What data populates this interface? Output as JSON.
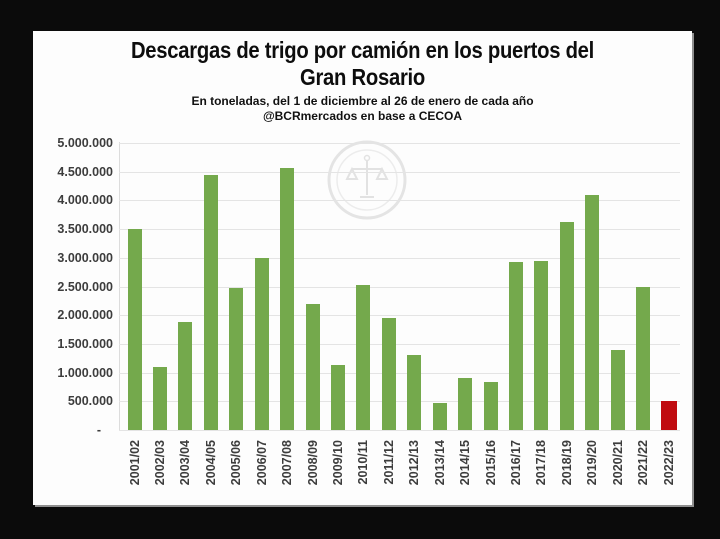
{
  "window": {
    "background": "#0b0b0b",
    "panel_background": "#fdfdfd"
  },
  "icons": {
    "watermark": "bcr-seal"
  },
  "chart_data": {
    "type": "bar",
    "title_lines": [
      "Descargas de trigo por camión en los puertos del",
      "Gran Rosario"
    ],
    "title": "Descargas de trigo por camión en los puertos del Gran Rosario",
    "subtitle": "En toneladas, del 1 de diciembre al 26 de enero de cada año",
    "source": "@BCRmercados en base a CECOA",
    "unit": "toneladas",
    "categories": [
      "2001/02",
      "2002/03",
      "2003/04",
      "2004/05",
      "2005/06",
      "2006/07",
      "2007/08",
      "2008/09",
      "2009/10",
      "2010/11",
      "2011/12",
      "2012/13",
      "2013/14",
      "2014/15",
      "2015/16",
      "2016/17",
      "2017/18",
      "2018/19",
      "2019/20",
      "2020/21",
      "2021/22",
      "2022/23"
    ],
    "values": [
      3500000,
      1100000,
      1880000,
      4450000,
      2470000,
      3000000,
      4570000,
      2200000,
      1140000,
      2530000,
      1950000,
      1310000,
      470000,
      900000,
      830000,
      2930000,
      2950000,
      3620000,
      4090000,
      1390000,
      2490000,
      500000
    ],
    "ylim": [
      0,
      5000000
    ],
    "ytick_step": 500000,
    "ytick_labels_top_to_bottom": [
      "5.000.000",
      "4.500.000",
      "4.000.000",
      "3.500.000",
      "3.000.000",
      "2.500.000",
      "2.000.000",
      "1.500.000",
      "1.000.000",
      "500.000",
      "-"
    ],
    "grid": true,
    "legend": false,
    "bar_color_default": "#74a94c",
    "bar_color_last": "#c00b10",
    "highlight_category": "2022/23"
  }
}
